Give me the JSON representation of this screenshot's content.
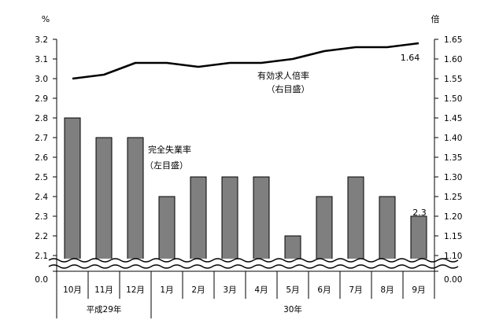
{
  "chart_data": {
    "type": "bar+line",
    "left_unit": "%",
    "right_unit": "倍",
    "categories": [
      "10月",
      "11月",
      "12月",
      "1月",
      "2月",
      "3月",
      "4月",
      "5月",
      "6月",
      "7月",
      "8月",
      "9月"
    ],
    "year_groups": [
      {
        "label": "平成29年",
        "count": 3
      },
      {
        "label": "30年",
        "count": 9
      }
    ],
    "series": [
      {
        "name": "完全失業率",
        "axis": "left",
        "kind": "bar",
        "color": "#7f7f7f",
        "values": [
          2.8,
          2.7,
          2.7,
          2.4,
          2.5,
          2.5,
          2.5,
          2.2,
          2.4,
          2.5,
          2.4,
          2.3
        ]
      },
      {
        "name": "有効求人倍率",
        "axis": "right",
        "kind": "line",
        "color": "#000000",
        "values": [
          1.55,
          1.56,
          1.59,
          1.59,
          1.58,
          1.59,
          1.59,
          1.6,
          1.62,
          1.63,
          1.63,
          1.64
        ]
      }
    ],
    "left_axis": {
      "ylim": [
        2.05,
        3.2
      ],
      "ticks": [
        "3.2",
        "3.1",
        "3.0",
        "2.9",
        "2.8",
        "2.7",
        "2.6",
        "2.5",
        "2.4",
        "2.3",
        "2.2",
        "2.1"
      ],
      "zero_label": "0.0"
    },
    "right_axis": {
      "ylim": [
        1.075,
        1.65
      ],
      "ticks": [
        "1.65",
        "1.60",
        "1.55",
        "1.50",
        "1.45",
        "1.40",
        "1.35",
        "1.30",
        "1.25",
        "1.20",
        "1.15",
        "1.10"
      ],
      "zero_label": "0.00"
    },
    "annotations": {
      "line_label_1": "有効求人倍率",
      "line_label_2": "（右目盛）",
      "bar_label_1": "完全失業率",
      "bar_label_2": "（左目盛）",
      "last_bar_value": "2.3",
      "last_line_value": "1.64"
    },
    "axis_break": true
  }
}
